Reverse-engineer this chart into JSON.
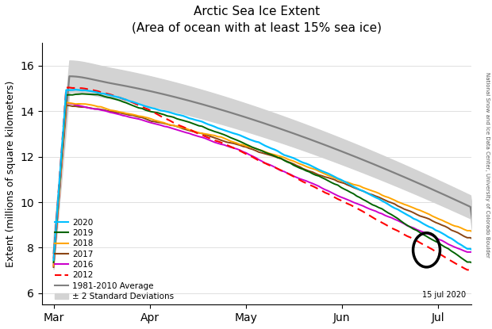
{
  "title_line1": "Arctic Sea Ice Extent",
  "title_line2": "(Area of ocean with at least 15% sea ice)",
  "ylabel": "Extent (millions of square kilometers)",
  "xlabel_ticks": [
    "Mar",
    "Apr",
    "May",
    "Jun",
    "Jul"
  ],
  "date_label": "15 jul 2020",
  "side_label": "National Snow and Ice Data Center, University of Colorado Boulder",
  "ylim": [
    5.5,
    17.0
  ],
  "yticks": [
    6,
    8,
    10,
    12,
    14,
    16
  ],
  "colors": {
    "2020": "#00BFFF",
    "2019": "#006400",
    "2018": "#FFA500",
    "2017": "#8B4513",
    "2016": "#CC00CC",
    "2012": "#FF0000",
    "avg": "#808080",
    "std_fill": "#D3D3D3"
  }
}
